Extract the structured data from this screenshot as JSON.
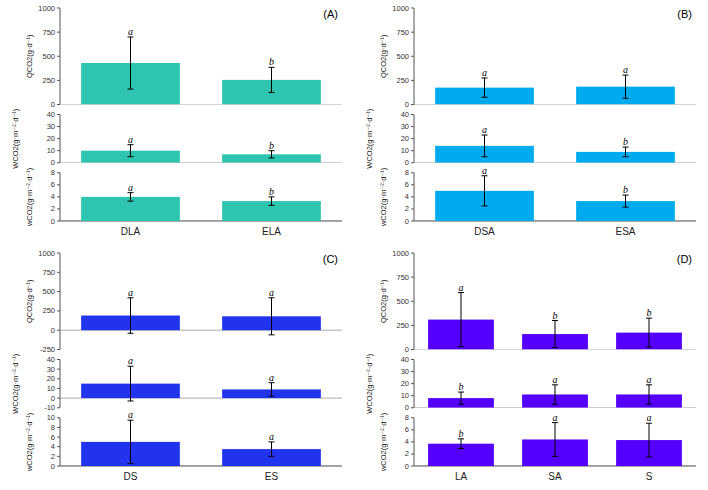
{
  "chart_data": [
    {
      "type": "bar",
      "title": "(A)",
      "categories": [
        "DLA",
        "ELA"
      ],
      "color": "#2DC5B0",
      "metrics": [
        {
          "ylabel": "QCO2(g·d⁻¹)",
          "ylim": [
            0,
            1000
          ],
          "yticks": [
            0,
            250,
            500,
            750,
            1000
          ],
          "values": [
            430,
            255
          ],
          "errors": [
            270,
            130
          ],
          "annotations": [
            "a",
            "b"
          ]
        },
        {
          "ylabel": "WCO2(g·m⁻²·d⁻¹)",
          "ylim": [
            0,
            40
          ],
          "yticks": [
            0,
            10,
            20,
            30,
            40
          ],
          "values": [
            10,
            7
          ],
          "errors": [
            5,
            3
          ],
          "annotations": [
            "a",
            "b"
          ]
        },
        {
          "ylabel": "wCO2(g·m⁻²·d⁻¹)",
          "ylim": [
            0,
            8
          ],
          "yticks": [
            0,
            2,
            4,
            6,
            8
          ],
          "values": [
            4.0,
            3.3
          ],
          "errors": [
            0.7,
            0.7
          ],
          "annotations": [
            "a",
            "b"
          ]
        }
      ]
    },
    {
      "type": "bar",
      "title": "(B)",
      "categories": [
        "DSA",
        "ESA"
      ],
      "color": "#00AAEE",
      "metrics": [
        {
          "ylabel": "QCO2(g·d⁻¹)",
          "ylim": [
            0,
            1000
          ],
          "yticks": [
            0,
            250,
            500,
            750,
            1000
          ],
          "values": [
            175,
            185
          ],
          "errors": [
            100,
            120
          ],
          "annotations": [
            "a",
            "a"
          ]
        },
        {
          "ylabel": "WCO2(g·m⁻²·d⁻¹)",
          "ylim": [
            0,
            40
          ],
          "yticks": [
            0,
            10,
            20,
            30,
            40
          ],
          "values": [
            14,
            9
          ],
          "errors": [
            9,
            4
          ],
          "annotations": [
            "a",
            "b"
          ]
        },
        {
          "ylabel": "wCO2(g·m⁻²·d⁻¹)",
          "ylim": [
            0,
            8
          ],
          "yticks": [
            0,
            2,
            4,
            6,
            8
          ],
          "values": [
            5.0,
            3.3
          ],
          "errors": [
            2.5,
            1.0
          ],
          "annotations": [
            "a",
            "b"
          ]
        }
      ]
    },
    {
      "type": "bar",
      "title": "(C)",
      "categories": [
        "DS",
        "ES"
      ],
      "color": "#2233EE",
      "metrics": [
        {
          "ylabel": "QCO2(g·d⁻¹)",
          "ylim": [
            -250,
            1000
          ],
          "yticks": [
            -250,
            0,
            250,
            500,
            750,
            1000
          ],
          "values": [
            190,
            180
          ],
          "errors": [
            230,
            240
          ],
          "annotations": [
            "a",
            "a"
          ]
        },
        {
          "ylabel": "WCO2(g·m⁻²·d⁻¹)",
          "ylim": [
            -10,
            40
          ],
          "yticks": [
            -10,
            0,
            10,
            20,
            30,
            40
          ],
          "values": [
            15,
            9
          ],
          "errors": [
            18,
            7
          ],
          "annotations": [
            "a",
            "a"
          ]
        },
        {
          "ylabel": "wCO2(g·m⁻²·d⁻¹)",
          "ylim": [
            0,
            10
          ],
          "yticks": [
            0,
            2,
            4,
            6,
            8,
            10
          ],
          "values": [
            5.0,
            3.5
          ],
          "errors": [
            4.5,
            1.5
          ],
          "annotations": [
            "a",
            "a"
          ]
        }
      ]
    },
    {
      "type": "bar",
      "title": "(D)",
      "categories": [
        "LA",
        "SA",
        "S"
      ],
      "color": "#5500FF",
      "metrics": [
        {
          "ylabel": "QCO2(g·d⁻¹)",
          "ylim": [
            0,
            1000
          ],
          "yticks": [
            0,
            250,
            500,
            750,
            1000
          ],
          "values": [
            310,
            160,
            175
          ],
          "errors": [
            280,
            140,
            150
          ],
          "annotations": [
            "a",
            "b",
            "b"
          ]
        },
        {
          "ylabel": "WCO2(g·m⁻²·d⁻¹)",
          "ylim": [
            0,
            40
          ],
          "yticks": [
            0,
            10,
            20,
            30,
            40
          ],
          "values": [
            8,
            11,
            11
          ],
          "errors": [
            5,
            8,
            8
          ],
          "annotations": [
            "b",
            "a",
            "a"
          ]
        },
        {
          "ylabel": "wCO2(g·m⁻²·d⁻¹)",
          "ylim": [
            0,
            8
          ],
          "yticks": [
            0,
            2,
            4,
            6,
            8
          ],
          "values": [
            3.7,
            4.4,
            4.3
          ],
          "errors": [
            0.8,
            2.8,
            2.8
          ],
          "annotations": [
            "b",
            "a",
            "a"
          ]
        }
      ]
    }
  ]
}
